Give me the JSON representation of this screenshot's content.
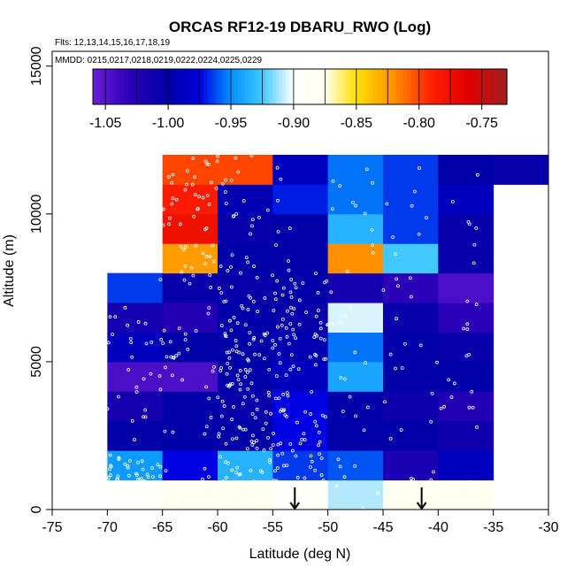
{
  "chart_data": {
    "type": "heatmap",
    "title": "ORCAS RF12-19 DBARU_RWO (Log)",
    "flights_note": "Flts: 12,13,14,15,16,17,18,19",
    "dates_note": "MMDD: 0215,0217,0218,0219,0222,0224,0225,0229",
    "xlabel": "Latitude (deg N)",
    "ylabel": "Altitude (m)",
    "xlim": [
      -75,
      -30
    ],
    "ylim": [
      0,
      15500
    ],
    "xticks": [
      -75,
      -70,
      -65,
      -60,
      -55,
      -50,
      -45,
      -40,
      -35,
      -30
    ],
    "yticks": [
      0,
      5000,
      10000,
      15000
    ],
    "colorbar": {
      "range": [
        -1.06,
        -0.73
      ],
      "ticks": [
        -1.05,
        -1.0,
        -0.95,
        -0.9,
        -0.85,
        -0.8,
        -0.75
      ],
      "tick_labels": [
        "-1.05",
        "-1.00",
        "-0.95",
        "-0.90",
        "-0.85",
        "-0.80",
        "-0.75"
      ],
      "stops": [
        [
          -1.06,
          "#6a1fd6"
        ],
        [
          -1.03,
          "#2a00b8"
        ],
        [
          -1.0,
          "#0000a8"
        ],
        [
          -0.975,
          "#0000e0"
        ],
        [
          -0.95,
          "#0090ff"
        ],
        [
          -0.925,
          "#40c8ff"
        ],
        [
          -0.9,
          "#ffffff"
        ],
        [
          -0.875,
          "#fffff0"
        ],
        [
          -0.85,
          "#ffe000"
        ],
        [
          -0.82,
          "#ff9000"
        ],
        [
          -0.79,
          "#ff2000"
        ],
        [
          -0.76,
          "#e00000"
        ],
        [
          -0.73,
          "#a02020"
        ]
      ]
    },
    "cell_height_m": 1000,
    "columns": [
      {
        "lat": [
          -70,
          -65
        ],
        "bottom_m": 0,
        "values": [
          -0.895,
          -0.945,
          -1.0,
          -1.015,
          -1.045,
          -0.99,
          -1.015,
          -0.965
        ]
      },
      {
        "lat": [
          -65,
          -60
        ],
        "bottom_m": 0,
        "values": [
          -0.875,
          -0.975,
          -1.0,
          -1.0,
          -1.045,
          -1.0,
          -1.025,
          -1.005,
          -0.825,
          -0.775,
          -0.785,
          -0.8
        ]
      },
      {
        "lat": [
          -60,
          -55
        ],
        "bottom_m": 0,
        "values": [
          -0.875,
          -0.935,
          -1.0,
          -1.005,
          -1.0,
          -1.0,
          -1.0,
          -1.005,
          -1.0,
          -1.005,
          -0.995,
          -0.8
        ]
      },
      {
        "lat": [
          -55,
          -50
        ],
        "bottom_m": 0,
        "values": [
          -0.89,
          -0.965,
          -0.975,
          -0.975,
          -0.99,
          -0.995,
          -1.005,
          -1.0,
          -1.0,
          -1.0,
          -0.97,
          -0.99
        ]
      },
      {
        "lat": [
          -50,
          -45
        ],
        "bottom_m": 0,
        "values": [
          -0.91,
          -0.96,
          -1.0,
          -1.0,
          -0.94,
          -0.955,
          -0.905,
          -1.015,
          -0.82,
          -0.935,
          -0.955,
          -0.955
        ]
      },
      {
        "lat": [
          -45,
          -40
        ],
        "bottom_m": 0,
        "values": [
          -0.875,
          -1.02,
          -1.0,
          -1.01,
          -1.0,
          -1.0,
          -1.005,
          -1.03,
          -0.925,
          -0.965,
          -0.965,
          -0.965
        ]
      },
      {
        "lat": [
          -40,
          -35
        ],
        "bottom_m": 0,
        "values": [
          -0.875,
          -0.99,
          -1.01,
          -1.025,
          -1.0,
          -1.005,
          -1.03,
          -1.045,
          -1.005,
          -1.005,
          -0.99,
          -1.0
        ]
      },
      {
        "lat": [
          -35,
          -30
        ],
        "bottom_m": 11000,
        "values": [
          -1.005
        ]
      }
    ],
    "arrows_lat": [
      -53,
      -41.5
    ],
    "arrow_top_m": 750
  }
}
